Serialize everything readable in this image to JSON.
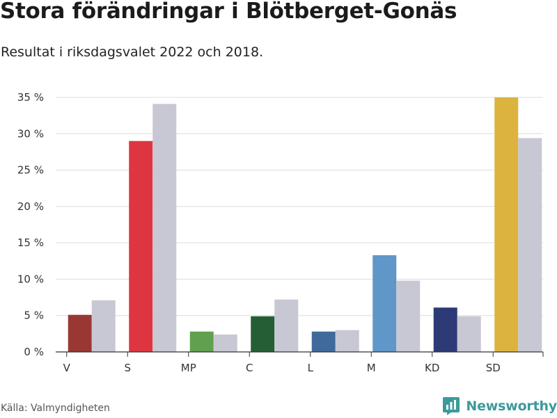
{
  "header": {
    "title": "Stora förändringar i Blötberget-Gonäs",
    "subtitle": "Resultat i riksdagsvalet 2022 och 2018."
  },
  "footer": {
    "source": "Källa: Valmyndigheten",
    "brand": "Newsworthy",
    "brand_icon": "newsworthy-logo-icon",
    "brand_color": "#3c9a9b"
  },
  "chart_data": {
    "type": "bar",
    "title": "Stora förändringar i Blötberget-Gonäs",
    "subtitle": "Resultat i riksdagsvalet 2022 och 2018.",
    "xlabel": "",
    "ylabel": "",
    "categories": [
      "V",
      "S",
      "MP",
      "C",
      "L",
      "M",
      "KD",
      "SD"
    ],
    "series": [
      {
        "name": "2022",
        "values": [
          5.1,
          29.0,
          2.8,
          4.9,
          2.8,
          13.3,
          6.1,
          35.0
        ],
        "colors": [
          "#993833",
          "#dd3640",
          "#61a04e",
          "#255e35",
          "#3f6a9a",
          "#6096c8",
          "#2d3a76",
          "#ddb33f"
        ]
      },
      {
        "name": "2018",
        "values": [
          7.1,
          34.1,
          2.4,
          7.2,
          3.0,
          9.8,
          4.9,
          29.4
        ],
        "colors": [
          "#c8c8d4",
          "#c8c8d4",
          "#c8c8d4",
          "#c8c8d4",
          "#c8c8d4",
          "#c8c8d4",
          "#c8c8d4",
          "#c8c8d4"
        ]
      }
    ],
    "ylim": [
      0,
      35
    ],
    "yticks": [
      0,
      5,
      10,
      15,
      20,
      25,
      30,
      35
    ],
    "ytick_labels": [
      "0 %",
      "5 %",
      "10 %",
      "15 %",
      "20 %",
      "25 %",
      "30 %",
      "35 %"
    ],
    "grid": true,
    "legend": "none"
  }
}
